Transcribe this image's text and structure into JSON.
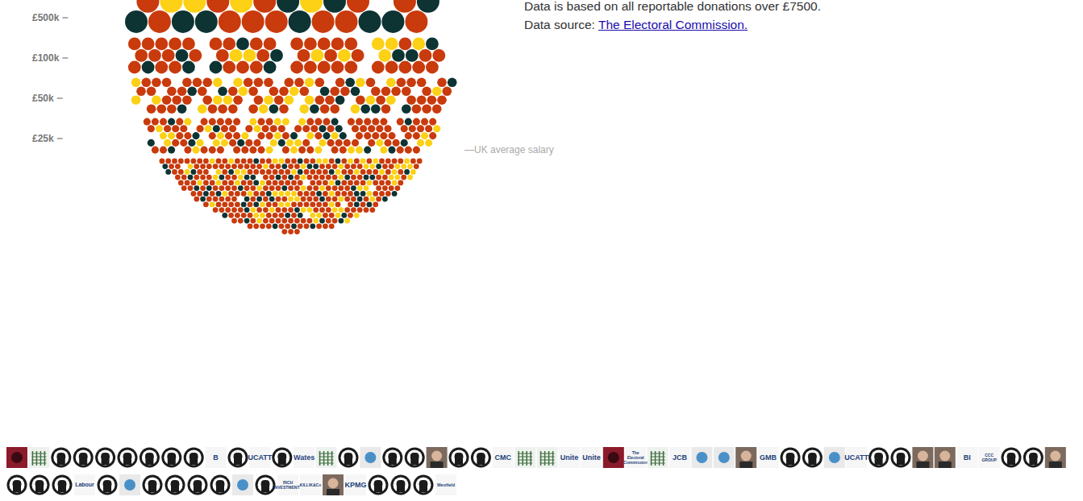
{
  "chart_data": {
    "type": "beeswarm",
    "categories": [
      null,
      null,
      null,
      null,
      null
    ],
    "series": [
      {
        "color": "#c93a0c",
        "values": [
          36,
          42,
          65,
          95,
          260
        ]
      },
      {
        "color": "#fcd116",
        "values": [
          12,
          8,
          22,
          35,
          80
        ]
      },
      {
        "color": "#0d3333",
        "values": [
          12,
          10,
          13,
          18,
          60
        ]
      }
    ],
    "yticks": [
      {
        "value": 500000,
        "label": "£500k"
      },
      {
        "value": 100000,
        "label": "£100k"
      },
      {
        "value": 50000,
        "label": "£50k"
      },
      {
        "value": 25000,
        "label": "£25k"
      }
    ],
    "annotations": [
      {
        "text": "—UK average salary"
      }
    ]
  },
  "text": {
    "note": "Data is based on all reportable donations over £7500.",
    "source_prefix": "Data source:",
    "source_link": "The Electoral Commission."
  },
  "footer": {
    "rows": [
      [
        null,
        null,
        null,
        null,
        null,
        null,
        null,
        null,
        null,
        "B",
        null,
        "UCATT",
        null,
        "Wates",
        null,
        null,
        null,
        null,
        null,
        null,
        null,
        null,
        "CMC",
        null,
        null,
        "Unite",
        "Unite",
        null,
        "The Electoral Commission",
        null,
        "JCB",
        null,
        null,
        null,
        "GMB",
        null,
        null,
        null,
        "UCATT",
        null,
        null,
        null,
        null,
        "BI",
        "CCC GROUP",
        null,
        null,
        null
      ],
      [
        null,
        null,
        null,
        "Labour",
        null,
        null,
        null,
        null,
        null,
        null,
        null,
        null,
        "RICH INVESTMENTS",
        "KILLIK&Co",
        null,
        "KPMG",
        null,
        null,
        null,
        "Westfield"
      ]
    ]
  }
}
